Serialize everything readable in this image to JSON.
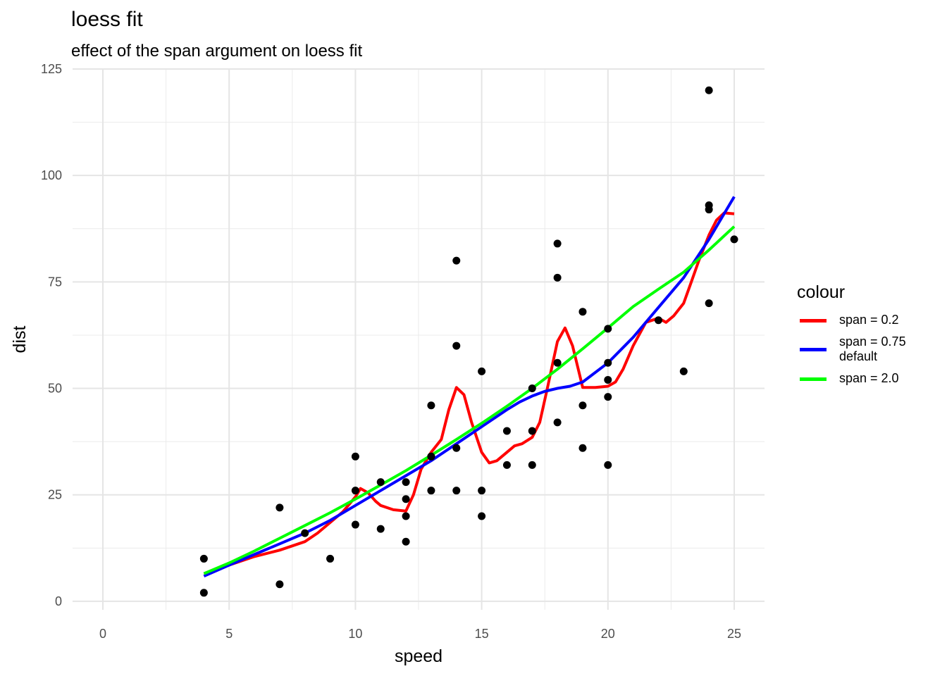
{
  "chart_data": {
    "type": "scatter",
    "title": "loess fit",
    "subtitle": "effect of the span argument on loess fit",
    "xlabel": "speed",
    "ylabel": "dist",
    "xlim": [
      -1.2,
      26.2
    ],
    "ylim": [
      -2,
      125
    ],
    "x_ticks": [
      0,
      5,
      10,
      15,
      20,
      25
    ],
    "x_tick_labels": [
      "0",
      "5",
      "10",
      "15",
      "20",
      "25"
    ],
    "y_ticks": [
      0,
      25,
      50,
      75,
      100,
      125
    ],
    "y_tick_labels": [
      "0",
      "25",
      "50",
      "75",
      "100",
      "125"
    ],
    "grid": true,
    "legend_position": "right",
    "legend_title": "colour",
    "points": {
      "color": "#000000",
      "x": [
        4,
        4,
        7,
        7,
        8,
        9,
        10,
        10,
        10,
        11,
        11,
        12,
        12,
        12,
        12,
        13,
        13,
        13,
        13,
        14,
        14,
        14,
        14,
        15,
        15,
        15,
        16,
        16,
        17,
        17,
        17,
        18,
        18,
        18,
        18,
        19,
        19,
        19,
        20,
        20,
        20,
        20,
        20,
        22,
        23,
        24,
        24,
        24,
        24,
        25
      ],
      "y": [
        2,
        10,
        4,
        22,
        16,
        10,
        18,
        26,
        34,
        17,
        28,
        14,
        20,
        24,
        28,
        26,
        34,
        34,
        46,
        26,
        36,
        60,
        80,
        20,
        26,
        54,
        32,
        40,
        32,
        40,
        50,
        42,
        56,
        76,
        84,
        36,
        46,
        68,
        32,
        48,
        52,
        56,
        64,
        66,
        54,
        70,
        92,
        93,
        120,
        85
      ]
    },
    "series": [
      {
        "name": "span = 0.2",
        "color": "#ff0000",
        "x": [
          4,
          5,
          6,
          7,
          8,
          8.5,
          9,
          9.5,
          10,
          10.2,
          10.5,
          10.8,
          11,
          11.5,
          12,
          12.3,
          12.6,
          13,
          13.4,
          13.7,
          14,
          14.3,
          14.6,
          15,
          15.3,
          15.6,
          16,
          16.3,
          16.6,
          17,
          17.3,
          17.6,
          18,
          18.3,
          18.6,
          19,
          19.5,
          20,
          20.3,
          20.6,
          21,
          21.5,
          22,
          22.3,
          22.6,
          23,
          23.3,
          23.6,
          24,
          24.3,
          24.6,
          25
        ],
        "y": [
          6.5,
          8.5,
          10.5,
          12,
          14,
          16,
          18.5,
          21,
          24.5,
          26.5,
          25.5,
          23.5,
          22.5,
          21.5,
          21.2,
          25,
          31,
          35,
          38,
          45,
          50.2,
          48.5,
          42,
          35,
          32.5,
          33,
          35,
          36.5,
          37,
          38.5,
          42,
          50,
          61,
          64.2,
          60,
          50.2,
          50.2,
          50.5,
          51.5,
          54.5,
          60,
          65.5,
          66.5,
          65.5,
          67,
          70,
          75,
          80,
          86,
          89.5,
          91.2,
          91
        ]
      },
      {
        "name": "span = 0.75",
        "name_line2": "default",
        "color": "#0000ff",
        "x": [
          4,
          5,
          6,
          7,
          8,
          9,
          10,
          11,
          12,
          13,
          14,
          15,
          16,
          16.5,
          17,
          17.5,
          18,
          18.5,
          19,
          20,
          21,
          22,
          23,
          24,
          25
        ],
        "y": [
          5.9,
          8.5,
          11,
          13.5,
          16,
          19,
          22.5,
          26,
          29.5,
          33,
          37,
          41,
          45,
          46.8,
          48.2,
          49.3,
          50,
          50.5,
          51.5,
          56,
          62,
          69,
          76,
          85,
          95
        ]
      },
      {
        "name": "span = 2.0",
        "color": "#00ff00",
        "x": [
          4,
          5,
          6,
          7,
          8,
          9,
          10,
          11,
          12,
          13,
          14,
          15,
          16,
          17,
          18,
          19,
          20,
          21,
          22,
          23,
          24,
          25
        ],
        "y": [
          6.5,
          9,
          11.8,
          14.8,
          17.8,
          20.8,
          24,
          27.3,
          30.7,
          34.3,
          38,
          41.8,
          45.8,
          50,
          54.5,
          59.3,
          64.2,
          69.2,
          73.3,
          77.3,
          82.5,
          88
        ]
      }
    ]
  }
}
